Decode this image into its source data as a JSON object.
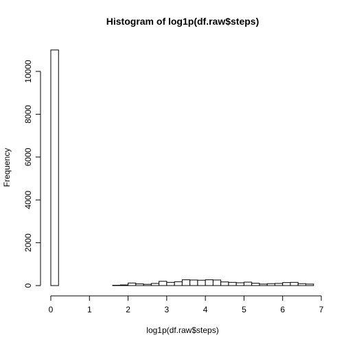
{
  "chart_data": {
    "type": "bar",
    "title": "Histogram of log1p(df.raw$steps)",
    "xlabel": "log1p(df.raw$steps)",
    "ylabel": "Frequency",
    "bin_width": 0.2,
    "bin_start": 0,
    "values": [
      11000,
      0,
      0,
      0,
      0,
      0,
      0,
      0,
      15,
      30,
      120,
      80,
      60,
      100,
      200,
      150,
      180,
      270,
      260,
      250,
      270,
      260,
      170,
      150,
      130,
      160,
      110,
      70,
      90,
      100,
      140,
      150,
      90,
      70
    ],
    "x_ticks": [
      0,
      1,
      2,
      3,
      4,
      5,
      6,
      7
    ],
    "y_ticks": [
      0,
      2000,
      4000,
      6000,
      8000,
      10000
    ],
    "xlim": [
      0,
      7
    ],
    "ylim": [
      0,
      11000
    ],
    "grid": false
  }
}
